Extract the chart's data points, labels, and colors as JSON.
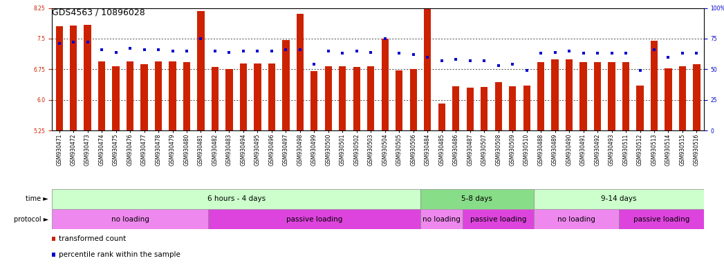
{
  "title": "GDS4563 / 10896028",
  "samples": [
    "GSM930471",
    "GSM930472",
    "GSM930473",
    "GSM930474",
    "GSM930475",
    "GSM930476",
    "GSM930477",
    "GSM930478",
    "GSM930479",
    "GSM930480",
    "GSM930481",
    "GSM930482",
    "GSM930483",
    "GSM930494",
    "GSM930495",
    "GSM930496",
    "GSM930497",
    "GSM930498",
    "GSM930499",
    "GSM930500",
    "GSM930501",
    "GSM930502",
    "GSM930503",
    "GSM930504",
    "GSM930505",
    "GSM930506",
    "GSM930484",
    "GSM930485",
    "GSM930486",
    "GSM930487",
    "GSM930507",
    "GSM930508",
    "GSM930509",
    "GSM930510",
    "GSM930488",
    "GSM930489",
    "GSM930490",
    "GSM930491",
    "GSM930492",
    "GSM930493",
    "GSM930511",
    "GSM930512",
    "GSM930513",
    "GSM930514",
    "GSM930515",
    "GSM930516"
  ],
  "bar_values": [
    7.8,
    7.82,
    7.84,
    6.95,
    6.83,
    6.95,
    6.87,
    6.95,
    6.95,
    6.93,
    8.17,
    6.8,
    6.75,
    6.9,
    6.9,
    6.9,
    7.47,
    8.1,
    6.7,
    6.83,
    6.82,
    6.8,
    6.82,
    7.5,
    6.72,
    6.75,
    8.4,
    5.92,
    6.33,
    6.3,
    6.32,
    6.43,
    6.33,
    6.35,
    6.93,
    7.0,
    7.0,
    6.93,
    6.93,
    6.93,
    6.93,
    6.35,
    7.45,
    6.78,
    6.82,
    6.88
  ],
  "percentile_values": [
    71,
    72,
    72,
    66,
    64,
    67,
    66,
    66,
    65,
    65,
    75,
    65,
    64,
    65,
    65,
    65,
    66,
    66,
    54,
    65,
    63,
    65,
    64,
    75,
    63,
    62,
    60,
    57,
    58,
    57,
    57,
    53,
    54,
    49,
    63,
    64,
    65,
    63,
    63,
    63,
    63,
    49,
    66,
    60,
    63,
    63
  ],
  "ylim_left": [
    5.25,
    8.25
  ],
  "ylim_right": [
    0,
    100
  ],
  "yticks_left": [
    5.25,
    6.0,
    6.75,
    7.5,
    8.25
  ],
  "yticks_right": [
    0,
    25,
    50,
    75,
    100
  ],
  "bar_color": "#CC2200",
  "dot_color": "#0000CC",
  "bar_bottom": 5.25,
  "time_bands": [
    {
      "label": "6 hours - 4 days",
      "start": 0,
      "end": 26,
      "color": "#CCFFCC"
    },
    {
      "label": "5-8 days",
      "start": 26,
      "end": 34,
      "color": "#88DD88"
    },
    {
      "label": "9-14 days",
      "start": 34,
      "end": 46,
      "color": "#CCFFCC"
    }
  ],
  "protocol_bands": [
    {
      "label": "no loading",
      "start": 0,
      "end": 11,
      "color": "#EE88EE"
    },
    {
      "label": "passive loading",
      "start": 11,
      "end": 26,
      "color": "#DD44DD"
    },
    {
      "label": "no loading",
      "start": 26,
      "end": 29,
      "color": "#EE88EE"
    },
    {
      "label": "passive loading",
      "start": 29,
      "end": 34,
      "color": "#DD44DD"
    },
    {
      "label": "no loading",
      "start": 34,
      "end": 40,
      "color": "#EE88EE"
    },
    {
      "label": "passive loading",
      "start": 40,
      "end": 46,
      "color": "#DD44DD"
    }
  ],
  "legend_items": [
    {
      "label": "transformed count",
      "color": "#CC2200",
      "marker": "s"
    },
    {
      "label": "percentile rank within the sample",
      "color": "#0000CC",
      "marker": "s"
    }
  ],
  "background_color": "#FFFFFF",
  "title_fontsize": 9,
  "tick_fontsize": 5.5,
  "band_fontsize": 7.5,
  "legend_fontsize": 7.5
}
